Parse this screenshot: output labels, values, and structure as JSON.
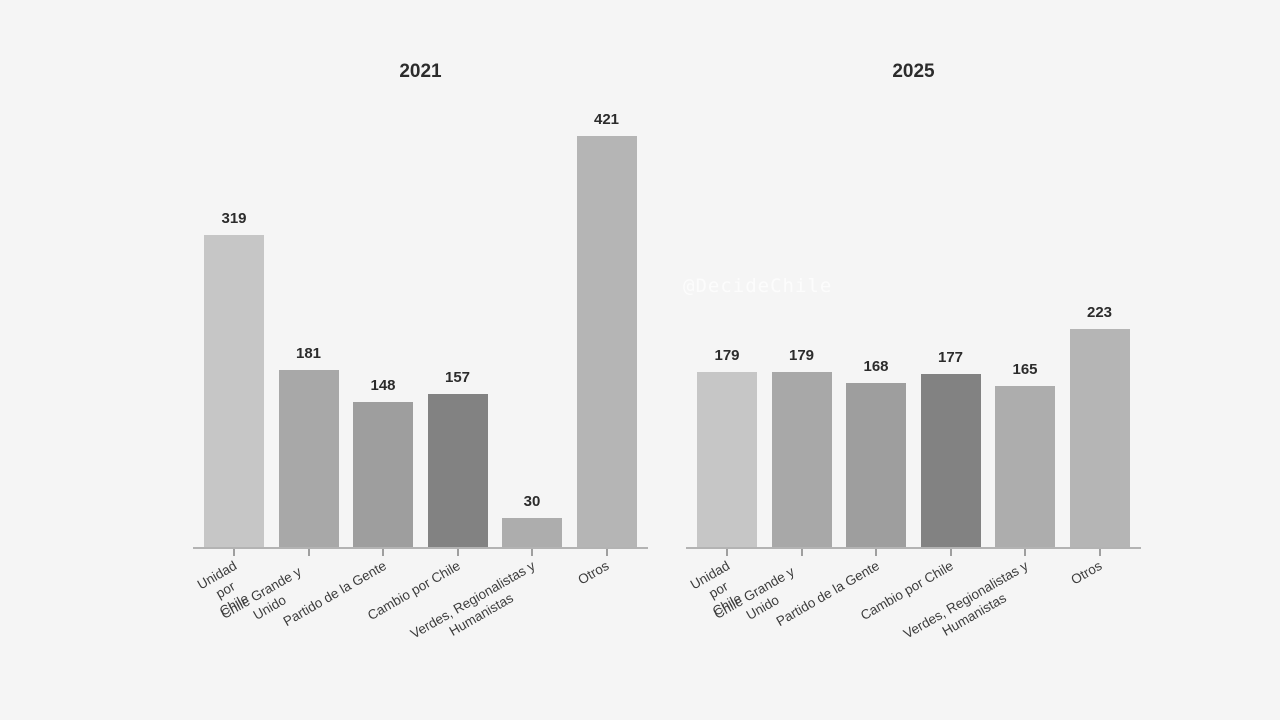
{
  "watermark": {
    "text": "@DecideChile"
  },
  "style": {
    "background": "#f5f5f5",
    "axis_color": "#b3b3b3",
    "tick_color": "#9f9f9f",
    "title_color": "#2c2c2c",
    "value_label_color": "#2c2c2c",
    "category_label_color": "#3c3c3c",
    "watermark_color": "#fcfcfc"
  },
  "chart_data": [
    {
      "type": "bar",
      "title": "2021",
      "categories": [
        "Unidad por Chile",
        "Chile Grande y Unido",
        "Partido de la Gente",
        "Cambio por Chile",
        "Verdes, Regionalistas y\nHumanistas",
        "Otros"
      ],
      "values": [
        319,
        181,
        148,
        157,
        30,
        421
      ],
      "bar_colors": [
        "#c6c6c6",
        "#a8a8a8",
        "#9e9e9e",
        "#828282",
        "#adadad",
        "#b5b5b5"
      ],
      "ylim": [
        0,
        440
      ],
      "grid": false,
      "legend": null,
      "value_labels_shown": true,
      "xlabel": "",
      "ylabel": ""
    },
    {
      "type": "bar",
      "title": "2025",
      "categories": [
        "Unidad por Chile",
        "Chile Grande y Unido",
        "Partido de la Gente",
        "Cambio por Chile",
        "Verdes, Regionalistas y\nHumanistas",
        "Otros"
      ],
      "values": [
        179,
        179,
        168,
        177,
        165,
        223
      ],
      "bar_colors": [
        "#c6c6c6",
        "#a8a8a8",
        "#9e9e9e",
        "#828282",
        "#adadad",
        "#b5b5b5"
      ],
      "ylim": [
        0,
        440
      ],
      "grid": false,
      "legend": null,
      "value_labels_shown": true,
      "xlabel": "",
      "ylabel": ""
    }
  ]
}
